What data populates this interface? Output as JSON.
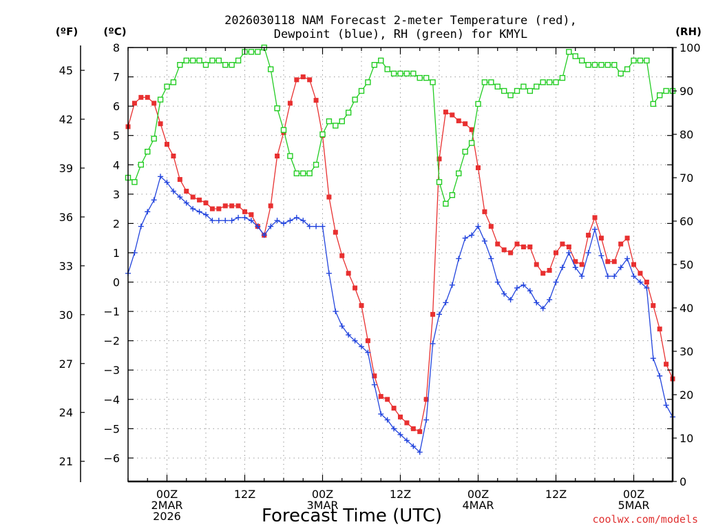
{
  "chart_data": {
    "type": "line",
    "title_line1": "2026030118 NAM Forecast 2-meter Temperature (red),",
    "title_line2": "Dewpoint (blue), RH (green) for KMYL",
    "xlabel": "Forecast Time (UTC)",
    "credit": "coolwx.com/models",
    "credit_color": "#e03030",
    "units": {
      "f": "(ºF)",
      "c": "(ºC)",
      "rh": "(RH)"
    },
    "x_range_hours": [
      -6,
      78
    ],
    "c_range": [
      -6.8,
      8.0
    ],
    "rh_range": [
      0,
      100
    ],
    "c_ticks": [
      "8",
      "7",
      "6",
      "5",
      "4",
      "3",
      "2",
      "1",
      "0",
      "-1",
      "-2",
      "-3",
      "-4",
      "-5",
      "-6"
    ],
    "f_ticks": [
      "45",
      "42",
      "39",
      "36",
      "33",
      "30",
      "27",
      "24",
      "21"
    ],
    "rh_ticks": [
      "100",
      "90",
      "80",
      "70",
      "60",
      "50",
      "40",
      "30",
      "20",
      "10",
      "0"
    ],
    "x_ticks": [
      {
        "hour": 0,
        "l1": "00Z",
        "l2": "2MAR",
        "l3": "2026"
      },
      {
        "hour": 12,
        "l1": "12Z",
        "l2": "",
        "l3": ""
      },
      {
        "hour": 24,
        "l1": "00Z",
        "l2": "3MAR",
        "l3": ""
      },
      {
        "hour": 36,
        "l1": "12Z",
        "l2": "",
        "l3": ""
      },
      {
        "hour": 48,
        "l1": "00Z",
        "l2": "4MAR",
        "l3": ""
      },
      {
        "hour": 60,
        "l1": "12Z",
        "l2": "",
        "l3": ""
      },
      {
        "hour": 72,
        "l1": "00Z",
        "l2": "5MAR",
        "l3": ""
      }
    ],
    "series": [
      {
        "name": "Temperature",
        "unit": "C",
        "color": "#e83030",
        "marker": "square-filled",
        "x": [
          -6,
          -5,
          -4,
          -3,
          -2,
          -1,
          0,
          1,
          2,
          3,
          4,
          5,
          6,
          7,
          8,
          9,
          10,
          11,
          12,
          13,
          14,
          15,
          16,
          17,
          18,
          19,
          20,
          21,
          22,
          23,
          24,
          25,
          26,
          27,
          28,
          29,
          30,
          31,
          32,
          33,
          34,
          35,
          36,
          37,
          38,
          39,
          40,
          41,
          42,
          43,
          44,
          45,
          46,
          47,
          48,
          49,
          50,
          51,
          52,
          53,
          54,
          55,
          56,
          57,
          58,
          59,
          60,
          61,
          62,
          63,
          64,
          65,
          66,
          67,
          68,
          69,
          70,
          71,
          72,
          73,
          74,
          75,
          76,
          77,
          78
        ],
        "values": [
          5.3,
          6.1,
          6.3,
          6.3,
          6.1,
          5.4,
          4.7,
          4.3,
          3.5,
          3.1,
          2.9,
          2.8,
          2.7,
          2.5,
          2.5,
          2.6,
          2.6,
          2.6,
          2.4,
          2.3,
          1.9,
          1.6,
          2.6,
          4.3,
          5.1,
          6.1,
          6.9,
          7.0,
          6.9,
          6.2,
          5.0,
          2.9,
          1.7,
          0.9,
          0.3,
          -0.2,
          -0.8,
          -2.0,
          -3.2,
          -3.9,
          -4.0,
          -4.3,
          -4.6,
          -4.8,
          -5.0,
          -5.1,
          -4.0,
          -1.1,
          4.2,
          5.8,
          5.7,
          5.5,
          5.4,
          5.2,
          3.9,
          2.4,
          1.9,
          1.3,
          1.1,
          1.0,
          1.3,
          1.2,
          1.2,
          0.6,
          0.3,
          0.4,
          1.0,
          1.3,
          1.2,
          0.7,
          0.6,
          1.6,
          2.2,
          1.5,
          0.7,
          0.7,
          1.3,
          1.5,
          0.6,
          0.3,
          0.0,
          -0.8,
          -1.6,
          -2.8,
          -3.3
        ]
      },
      {
        "name": "Dewpoint",
        "unit": "C",
        "color": "#2244dd",
        "marker": "plus",
        "x": [
          -6,
          -5,
          -4,
          -3,
          -2,
          -1,
          0,
          1,
          2,
          3,
          4,
          5,
          6,
          7,
          8,
          9,
          10,
          11,
          12,
          13,
          14,
          15,
          16,
          17,
          18,
          19,
          20,
          21,
          22,
          23,
          24,
          25,
          26,
          27,
          28,
          29,
          30,
          31,
          32,
          33,
          34,
          35,
          36,
          37,
          38,
          39,
          40,
          41,
          42,
          43,
          44,
          45,
          46,
          47,
          48,
          49,
          50,
          51,
          52,
          53,
          54,
          55,
          56,
          57,
          58,
          59,
          60,
          61,
          62,
          63,
          64,
          65,
          66,
          67,
          68,
          69,
          70,
          71,
          72,
          73,
          74,
          75,
          76,
          77,
          78
        ],
        "values": [
          0.3,
          1.0,
          1.9,
          2.4,
          2.8,
          3.6,
          3.4,
          3.1,
          2.9,
          2.7,
          2.5,
          2.4,
          2.3,
          2.1,
          2.1,
          2.1,
          2.1,
          2.2,
          2.2,
          2.1,
          1.9,
          1.6,
          1.9,
          2.1,
          2.0,
          2.1,
          2.2,
          2.1,
          1.9,
          1.9,
          1.9,
          0.3,
          -1.0,
          -1.5,
          -1.8,
          -2.0,
          -2.2,
          -2.4,
          -3.5,
          -4.5,
          -4.7,
          -5.0,
          -5.2,
          -5.4,
          -5.6,
          -5.8,
          -4.7,
          -2.1,
          -1.1,
          -0.7,
          -0.1,
          0.8,
          1.5,
          1.6,
          1.9,
          1.4,
          0.8,
          0.0,
          -0.4,
          -0.6,
          -0.2,
          -0.1,
          -0.3,
          -0.7,
          -0.9,
          -0.6,
          0.0,
          0.5,
          1.0,
          0.5,
          0.2,
          1.0,
          1.8,
          0.9,
          0.2,
          0.2,
          0.5,
          0.8,
          0.2,
          0.0,
          -0.2,
          -2.6,
          -3.2,
          -4.2,
          -4.6
        ]
      },
      {
        "name": "RH",
        "unit": "%",
        "color": "#22cc22",
        "marker": "square-open",
        "x": [
          -6,
          -5,
          -4,
          -3,
          -2,
          -1,
          0,
          1,
          2,
          3,
          4,
          5,
          6,
          7,
          8,
          9,
          10,
          11,
          12,
          13,
          14,
          15,
          16,
          17,
          18,
          19,
          20,
          21,
          22,
          23,
          24,
          25,
          26,
          27,
          28,
          29,
          30,
          31,
          32,
          33,
          34,
          35,
          36,
          37,
          38,
          39,
          40,
          41,
          42,
          43,
          44,
          45,
          46,
          47,
          48,
          49,
          50,
          51,
          52,
          53,
          54,
          55,
          56,
          57,
          58,
          59,
          60,
          61,
          62,
          63,
          64,
          65,
          66,
          67,
          68,
          69,
          70,
          71,
          72,
          73,
          74,
          75,
          76,
          77,
          78
        ],
        "values": [
          70,
          69,
          73,
          76,
          79,
          88,
          91,
          92,
          96,
          97,
          97,
          97,
          96,
          97,
          97,
          96,
          96,
          97,
          99,
          99,
          99,
          100,
          95,
          86,
          81,
          75,
          71,
          71,
          71,
          73,
          80,
          83,
          82,
          83,
          85,
          88,
          90,
          92,
          96,
          97,
          95,
          94,
          94,
          94,
          94,
          93,
          93,
          92,
          69,
          64,
          66,
          71,
          76,
          78,
          87,
          92,
          92,
          91,
          90,
          89,
          90,
          91,
          90,
          91,
          92,
          92,
          92,
          93,
          99,
          98,
          97,
          96,
          96,
          96,
          96,
          96,
          94,
          95,
          97,
          97,
          97,
          87,
          89,
          90,
          90
        ]
      }
    ]
  }
}
